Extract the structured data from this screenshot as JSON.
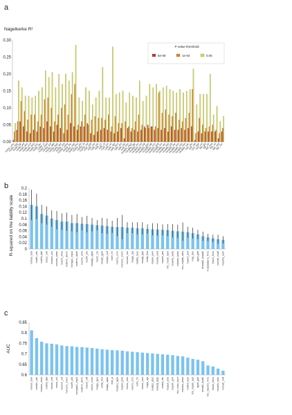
{
  "chart_data": [
    {
      "panel": "a",
      "type": "bar",
      "ylabel": "Nagelkerke R²",
      "ylim": [
        0,
        0.3
      ],
      "yticks": [
        "0.00",
        "0.05",
        "0.10",
        "0.15",
        "0.20",
        "0.25",
        "0.30"
      ],
      "legend": {
        "title": "P-value threshold",
        "placement": "top-right"
      },
      "categories": [
        "ncept_umc",
        "ncept_vgg",
        "noskt_sgl",
        "noskt_phl",
        "noskt_abs",
        "noskt_ucd",
        "noskt_epo",
        "noskt_onc",
        "noskt_ber",
        "noskt_iv",
        "noskt_med",
        "noshp_lsd",
        "noshp_dkh",
        "noshp_hge",
        "noshp_apt",
        "noshp_nta",
        "noshp_mmq",
        "noshp_blc",
        "noshp_sap",
        "noshp_cms",
        "noshp_ptb",
        "noshp_fb",
        "noshp_val",
        "noth_sdb",
        "noth_ms",
        "noth_srp",
        "noth_s1",
        "noth_ol",
        "noth_ucl",
        "noth_utr",
        "noth_apt",
        "noth_brm",
        "noth_dui",
        "noth_clp",
        "noth_bss",
        "nouklhr_mg2",
        "nouklhr_dgt",
        "nouklhr_ew",
        "nouklhr_cve",
        "nouklhr_cbk",
        "nouklhr_pgs",
        "nouklhr_aik",
        "nouklhr_n1s",
        "nouklhr_gnk",
        "nouklhr_bix",
        "nouklhr_osr",
        "nouklhr_mpl",
        "nouklhr_jub",
        "nouklhr_bar",
        "nouklhr_umi",
        "nouklhr_cas",
        "nouklhr_mm",
        "nouklhr_ndc",
        "rsm_plu",
        "rsm_sle",
        "rsm_sge",
        "rsm_ucl",
        "tbk_gbl",
        "tbk_blr",
        "tbk_mia",
        "tbk_uri",
        "ggr_wel",
        "ggr_bcr"
      ],
      "series": [
        {
          "name": "5e-08",
          "color": "#c0392b",
          "values": [
            0.005,
            0.035,
            0.06,
            0.045,
            0.03,
            0.025,
            0.035,
            0.03,
            0.045,
            0.04,
            0.06,
            0.045,
            0.03,
            0.05,
            0.04,
            0.025,
            0.035,
            0.055,
            0.045,
            0.035,
            0.045,
            0.045,
            0.055,
            0.025,
            0.02,
            0.03,
            0.035,
            0.04,
            0.035,
            0.03,
            0.025,
            0.03,
            0.04,
            0.01,
            0.04,
            0.03,
            0.035,
            0.03,
            0.035,
            0.045,
            0.05,
            0.045,
            0.035,
            0.04,
            0.035,
            0.04,
            0.03,
            0.045,
            0.035,
            0.035,
            0.04,
            0.035,
            0.04,
            0.045,
            0.005,
            0.03,
            0.025,
            0.03,
            0.03,
            0.03,
            0.03,
            0.01,
            0.03
          ]
        },
        {
          "name": "1e-04",
          "color": "#e67e22",
          "values": [
            0.03,
            0.06,
            0.12,
            0.09,
            0.065,
            0.08,
            0.08,
            0.06,
            0.08,
            0.125,
            0.13,
            0.1,
            0.06,
            0.08,
            0.1,
            0.11,
            0.08,
            0.14,
            0.17,
            0.05,
            0.06,
            0.08,
            0.05,
            0.065,
            0.075,
            0.07,
            0.07,
            0.065,
            0.08,
            0.045,
            0.075,
            0.055,
            0.055,
            0.06,
            0.045,
            0.04,
            0.06,
            0.08,
            0.05,
            0.04,
            0.04,
            0.045,
            0.045,
            0.145,
            0.085,
            0.095,
            0.08,
            0.075,
            0.085,
            0.065,
            0.06,
            0.07,
            0.085,
            0.155,
            0.025,
            0.07,
            0.05,
            0.04,
            0.045,
            0.05,
            0.035,
            0.025,
            0.04
          ]
        },
        {
          "name": "0.05",
          "color": "#d4d84a",
          "values": [
            0.055,
            0.18,
            0.16,
            0.135,
            0.135,
            0.13,
            0.135,
            0.15,
            0.16,
            0.21,
            0.19,
            0.205,
            0.16,
            0.2,
            0.17,
            0.2,
            0.18,
            0.205,
            0.285,
            0.13,
            0.12,
            0.16,
            0.15,
            0.11,
            0.13,
            0.15,
            0.22,
            0.13,
            0.13,
            0.28,
            0.14,
            0.145,
            0.15,
            0.115,
            0.145,
            0.135,
            0.13,
            0.18,
            0.12,
            0.135,
            0.17,
            0.16,
            0.17,
            0.15,
            0.16,
            0.165,
            0.155,
            0.15,
            0.145,
            0.155,
            0.145,
            0.15,
            0.155,
            0.215,
            0.11,
            0.14,
            0.14,
            0.14,
            0.2,
            0.08,
            0.105,
            0.06,
            0.075
          ]
        }
      ]
    },
    {
      "panel": "b",
      "type": "bar",
      "ylabel": "R-squared on the liability scale",
      "ylim": [
        0,
        0.2
      ],
      "yticks": [
        "0",
        "0.02",
        "0.04",
        "0.06",
        "0.08",
        "0.1",
        "0.12",
        "0.14",
        "0.16",
        "0.18",
        "0.2"
      ],
      "categories": [
        "nshew_bcw",
        "nodihi_cdri",
        "nodhd_dpll",
        "noscs_cidr",
        "nosavs_ucs",
        "nocoes_swas",
        "noeshi_zhku",
        "noderm_denm",
        "nomgp2_mgs2",
        "noderm_abarl",
        "noume_ume",
        "nouflh_pfu",
        "nouagu_ugau",
        "noscir_clo",
        "noopw_gpw",
        "noopw_czd",
        "nofin_fin",
        "nocmu_cms",
        "nomuric_munc",
        "nocuse_czz",
        "noagu_aju",
        "nadbis_buci",
        "noopjk_tpjk",
        "nofila_fkia",
        "nopew_pew",
        "noucla_ucla",
        "nopew_jaw",
        "trio_noubr_banl",
        "nosarfy_sarfy",
        "nobobo_bobo",
        "trio_nopale_aknj",
        "nopert_port",
        "noqi_dus",
        "ajprt_gdrt",
        "ahsaat2_bsaat2",
        "truasaatarru_tmru",
        "ebor1_feu1",
        "nomalf_mudf",
        "nosarfu_sarh"
      ],
      "values": [
        0.145,
        0.14,
        0.115,
        0.11,
        0.1,
        0.095,
        0.09,
        0.09,
        0.085,
        0.085,
        0.083,
        0.082,
        0.08,
        0.078,
        0.077,
        0.075,
        0.073,
        0.072,
        0.072,
        0.07,
        0.07,
        0.068,
        0.068,
        0.066,
        0.065,
        0.064,
        0.063,
        0.062,
        0.06,
        0.058,
        0.057,
        0.055,
        0.052,
        0.048,
        0.042,
        0.038,
        0.035,
        0.032,
        0.03
      ],
      "errors": [
        0.05,
        0.042,
        0.03,
        0.03,
        0.027,
        0.03,
        0.027,
        0.03,
        0.027,
        0.03,
        0.022,
        0.027,
        0.022,
        0.017,
        0.025,
        0.025,
        0.02,
        0.03,
        0.04,
        0.018,
        0.018,
        0.02,
        0.02,
        0.015,
        0.02,
        0.02,
        0.018,
        0.02,
        0.022,
        0.022,
        0.03,
        0.018,
        0.018,
        0.015,
        0.015,
        0.012,
        0.012,
        0.015,
        0.012
      ]
    },
    {
      "panel": "c",
      "type": "bar",
      "ylabel": "AUC",
      "ylim": [
        0.6,
        0.85
      ],
      "yticks": [
        "0.6",
        "0.65",
        "0.7",
        "0.75",
        "0.8",
        "0.85"
      ],
      "categories": [
        "nshew_bcw",
        "noedih_cdri",
        "nosavs_nsws",
        "nodhd_dpll",
        "noscis_cidr",
        "noscs_ucf",
        "nounch_unt",
        "nomuric_munc",
        "nouflh_pfu",
        "nompgb2_mgs2",
        "noderm_derm",
        "noscef_cdf",
        "nocmr_crow",
        "noagu_ajsu",
        "nofila_fkiu",
        "noagu_ugau",
        "nbd_ju",
        "noopsu_ajaw",
        "nopew_pew",
        "nocov_cow",
        "nocmo_cms",
        "nofin_fin",
        "nosoc_czlo",
        "noqui_aju",
        "noatpz_pto1",
        "noacplj_tpgk",
        "noaka_ble",
        "noupui_uclu",
        "noaufh_jarh",
        "trio_nolur_bunr",
        "nobobo_bobo",
        "nodhd_buis",
        "trio_nopalr_aipr",
        "ajpet_jpt1",
        "ahsat2_bsat2",
        "trio_raluwru_lmru",
        "ebra1_ebri1",
        "nosarfu_saih",
        "nomalf_mdf"
      ],
      "values": [
        0.812,
        0.775,
        0.758,
        0.75,
        0.748,
        0.745,
        0.74,
        0.737,
        0.736,
        0.733,
        0.732,
        0.73,
        0.728,
        0.725,
        0.722,
        0.72,
        0.718,
        0.717,
        0.715,
        0.712,
        0.71,
        0.708,
        0.706,
        0.704,
        0.702,
        0.7,
        0.698,
        0.696,
        0.694,
        0.69,
        0.688,
        0.682,
        0.676,
        0.672,
        0.665,
        0.645,
        0.64,
        0.63,
        0.62
      ]
    }
  ],
  "labels": {
    "panel_a": "a",
    "panel_b": "b",
    "panel_c": "c"
  }
}
